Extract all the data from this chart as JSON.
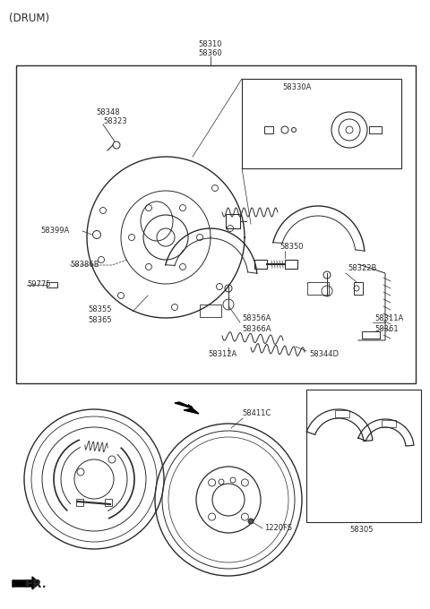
{
  "bg_color": "#ffffff",
  "line_color": "#2a2a2a",
  "fig_width": 4.8,
  "fig_height": 6.8,
  "dpi": 100,
  "labels": {
    "drum": "(DRUM)",
    "fr": "FR.",
    "p58310": "58310",
    "p58360": "58360",
    "p58330A": "58330A",
    "p58348": "58348",
    "p58323": "58323",
    "p58399A": "58399A",
    "p58386B": "58386B",
    "p59775": "59775",
    "p58355": "58355",
    "p58365": "58365",
    "p58350": "58350",
    "p58356A": "58356A",
    "p58366A": "58366A",
    "p58312A": "58312A",
    "p58344D": "58344D",
    "p58322B": "58322B",
    "p58311A": "58311A",
    "p58361": "58361",
    "p58411C": "58411C",
    "p1220FS": "1220FS",
    "p58305": "58305"
  },
  "fs": 6.0,
  "fs_title": 8.5,
  "lw": 0.75
}
